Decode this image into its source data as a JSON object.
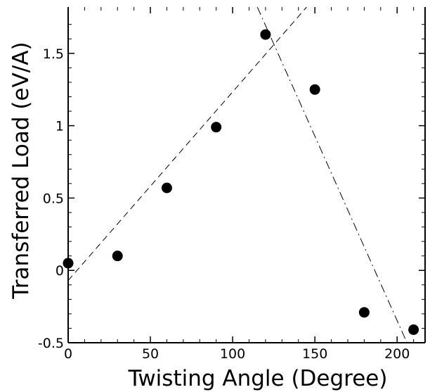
{
  "chart_data": {
    "type": "scatter",
    "xlabel": "Twisting Angle (Degree)",
    "ylabel": "Transferred Load (eV/A)",
    "xlim": [
      0,
      217
    ],
    "ylim": [
      -0.5,
      1.82
    ],
    "xticks": [
      0,
      50,
      100,
      150,
      200
    ],
    "yticks": [
      -0.5,
      0,
      0.5,
      1,
      1.5
    ],
    "xtick_labels": [
      "0",
      "50",
      "100",
      "150",
      "200"
    ],
    "ytick_labels": [
      "-0.5",
      "0",
      "0.5",
      "1",
      "1.5"
    ],
    "grid": false,
    "series": [
      {
        "style": "markers",
        "marker": "filled-circle",
        "color": "#000000",
        "x": [
          0,
          30,
          60,
          90,
          120,
          150,
          180,
          210
        ],
        "y": [
          0.05,
          0.1,
          0.57,
          0.99,
          1.63,
          1.25,
          -0.29,
          -0.41
        ]
      },
      {
        "style": "dashed-line",
        "color": "#000000",
        "x": [
          0,
          145
        ],
        "y": [
          -0.07,
          1.82
        ]
      },
      {
        "style": "dash-dot-line",
        "color": "#000000",
        "x": [
          115,
          206
        ],
        "y": [
          1.82,
          -0.5
        ]
      }
    ]
  }
}
